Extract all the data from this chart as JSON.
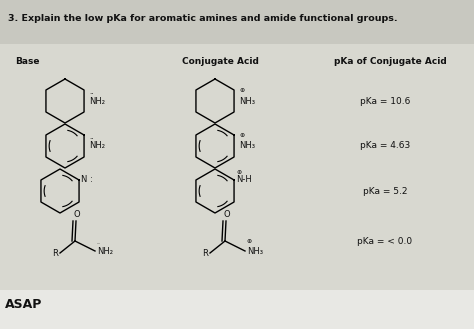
{
  "title": "3. Explain the low pKa for aromatic amines and amide functional groups.",
  "col_headers": [
    "Base",
    "Conjugate Acid",
    "pKa of Conjugate Acid"
  ],
  "pka_values": [
    "pKa = 10.6",
    "pKa = 4.63",
    "pKa = 5.2",
    "pKa = < 0.0"
  ],
  "bg_color": "#b8b8b0",
  "paper_color": "#d8d8d0",
  "text_color": "#111111",
  "footer": "ASAP",
  "footer_bg": "#e8e8e4"
}
